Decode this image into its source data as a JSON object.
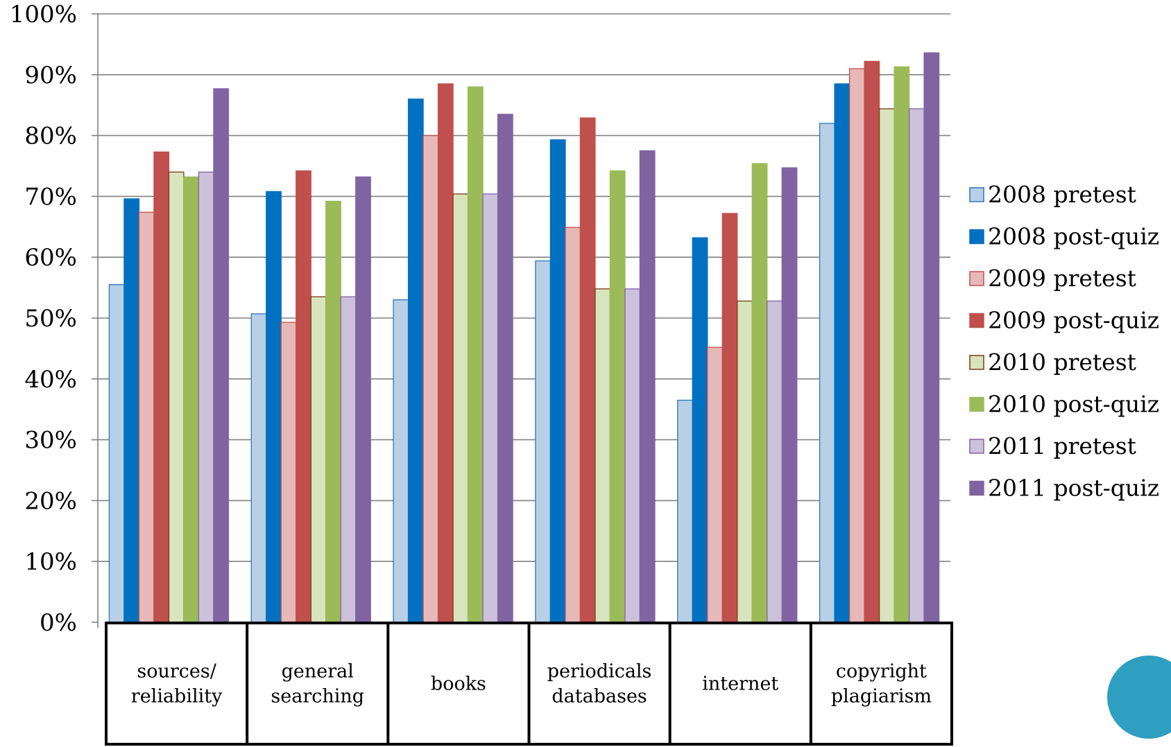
{
  "chart_data": {
    "type": "bar",
    "title": "",
    "xlabel": "",
    "ylabel": "",
    "ylim": [
      0,
      100
    ],
    "yticks": [
      "0%",
      "10%",
      "20%",
      "30%",
      "40%",
      "50%",
      "60%",
      "70%",
      "80%",
      "90%",
      "100%"
    ],
    "y_unit": "%",
    "grid": true,
    "legend_position": "right",
    "categories": [
      [
        "sources/",
        "reliability"
      ],
      [
        "general",
        "searching"
      ],
      [
        "books"
      ],
      [
        "periodicals",
        "databases"
      ],
      [
        "internet"
      ],
      [
        "copyright",
        "plagiarism"
      ]
    ],
    "series": [
      {
        "name": "2008 pretest",
        "color": "#b8cfe6",
        "stroke": "#2e75b6",
        "values": [
          55.5,
          50.7,
          53.0,
          59.4,
          36.5,
          82.0
        ]
      },
      {
        "name": "2008 post-quiz",
        "color": "#0070c0",
        "stroke": "#0070c0",
        "values": [
          69.6,
          70.8,
          86.0,
          79.3,
          63.2,
          88.5
        ]
      },
      {
        "name": "2009 pretest",
        "color": "#e6b9b8",
        "stroke": "#c0504d",
        "values": [
          67.4,
          49.3,
          80.0,
          64.9,
          45.2,
          91.0
        ]
      },
      {
        "name": "2009 post-quiz",
        "color": "#c0504d",
        "stroke": "#c0504d",
        "values": [
          77.3,
          74.2,
          88.5,
          82.9,
          67.2,
          92.2
        ]
      },
      {
        "name": "2010 pretest",
        "color": "#d7e4bd",
        "stroke": "#7a3b14",
        "values": [
          74.0,
          53.5,
          70.4,
          54.8,
          52.8,
          84.4
        ]
      },
      {
        "name": "2010 post-quiz",
        "color": "#9bbb59",
        "stroke": "#9bbb59",
        "values": [
          73.2,
          69.2,
          88.0,
          74.2,
          75.4,
          91.3
        ]
      },
      {
        "name": "2011 pretest",
        "color": "#ccc1da",
        "stroke": "#8064a2",
        "values": [
          74.0,
          53.5,
          70.4,
          54.8,
          52.8,
          84.4
        ]
      },
      {
        "name": "2011 post-quiz",
        "color": "#8064a2",
        "stroke": "#8064a2",
        "values": [
          87.7,
          73.2,
          83.5,
          77.5,
          74.7,
          93.6
        ]
      }
    ]
  }
}
